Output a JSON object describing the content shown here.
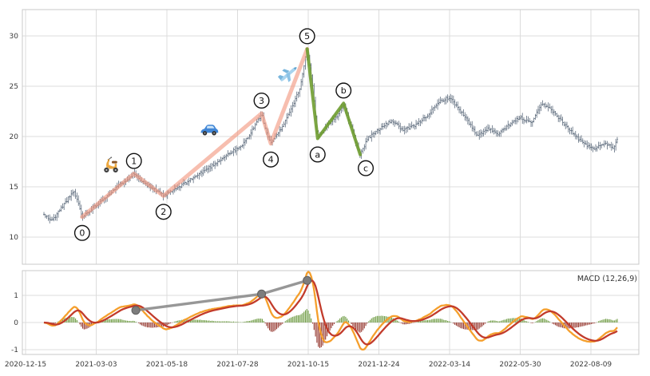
{
  "figure": {
    "background": "#ffffff"
  },
  "chart_data": [
    {
      "type": "candlestick",
      "panel": "price",
      "title": "",
      "xlabel": "",
      "ylabel": "",
      "bar_color": "#3d4e63",
      "grid": true,
      "yticks": [
        10,
        15,
        20,
        25,
        30
      ],
      "ylim": [
        7.3,
        32.6
      ],
      "x_tick_labels": [
        "2020-12-15",
        "2021-03-03",
        "2021-05-18",
        "2021-07-28",
        "2021-10-15",
        "2021-12-24",
        "2022-03-14",
        "2022-05-30",
        "2022-08-09"
      ],
      "price_path": [
        [
          0.035,
          12.2
        ],
        [
          0.048,
          11.6
        ],
        [
          0.062,
          12.8
        ],
        [
          0.075,
          13.9
        ],
        [
          0.084,
          14.5
        ],
        [
          0.09,
          13.5
        ],
        [
          0.097,
          12.0
        ],
        [
          0.12,
          13.2
        ],
        [
          0.15,
          14.8
        ],
        [
          0.181,
          16.3
        ],
        [
          0.2,
          15.3
        ],
        [
          0.229,
          14.1
        ],
        [
          0.255,
          15.0
        ],
        [
          0.285,
          16.2
        ],
        [
          0.31,
          17.2
        ],
        [
          0.335,
          18.3
        ],
        [
          0.355,
          19.0
        ],
        [
          0.37,
          20.3
        ],
        [
          0.388,
          22.3
        ],
        [
          0.395,
          20.6
        ],
        [
          0.403,
          19.3
        ],
        [
          0.42,
          20.8
        ],
        [
          0.438,
          23.0
        ],
        [
          0.45,
          24.8
        ],
        [
          0.462,
          28.7
        ],
        [
          0.47,
          25.5
        ],
        [
          0.479,
          19.8
        ],
        [
          0.495,
          21.2
        ],
        [
          0.51,
          22.0
        ],
        [
          0.521,
          23.3
        ],
        [
          0.533,
          21.0
        ],
        [
          0.548,
          18.2
        ],
        [
          0.56,
          19.8
        ],
        [
          0.58,
          20.8
        ],
        [
          0.6,
          21.6
        ],
        [
          0.618,
          20.6
        ],
        [
          0.64,
          21.2
        ],
        [
          0.66,
          22.3
        ],
        [
          0.678,
          23.5
        ],
        [
          0.692,
          23.9
        ],
        [
          0.705,
          23.0
        ],
        [
          0.722,
          21.6
        ],
        [
          0.738,
          20.0
        ],
        [
          0.755,
          20.8
        ],
        [
          0.772,
          20.2
        ],
        [
          0.79,
          21.2
        ],
        [
          0.808,
          21.9
        ],
        [
          0.825,
          21.3
        ],
        [
          0.843,
          23.2
        ],
        [
          0.858,
          22.7
        ],
        [
          0.875,
          21.5
        ],
        [
          0.893,
          20.3
        ],
        [
          0.912,
          19.2
        ],
        [
          0.93,
          18.8
        ],
        [
          0.945,
          19.4
        ],
        [
          0.958,
          18.9
        ],
        [
          0.965,
          19.7
        ]
      ],
      "elliott_waves": {
        "impulse_color": "#f2967e",
        "correction_color": "#6f9d30",
        "points": [
          {
            "label": "0",
            "t": 0.097,
            "price": 12.0,
            "pos": "below"
          },
          {
            "label": "1",
            "t": 0.181,
            "price": 16.3,
            "pos": "above"
          },
          {
            "label": "2",
            "t": 0.229,
            "price": 14.1,
            "pos": "below"
          },
          {
            "label": "3",
            "t": 0.388,
            "price": 22.3,
            "pos": "above"
          },
          {
            "label": "4",
            "t": 0.403,
            "price": 19.3,
            "pos": "below"
          },
          {
            "label": "5",
            "t": 0.462,
            "price": 28.7,
            "pos": "above"
          },
          {
            "label": "a",
            "t": 0.479,
            "price": 19.8,
            "pos": "below"
          },
          {
            "label": "b",
            "t": 0.521,
            "price": 23.3,
            "pos": "above"
          },
          {
            "label": "c",
            "t": 0.548,
            "price": 18.2,
            "pos": "belowright"
          }
        ]
      },
      "icons": [
        {
          "name": "scooter-icon",
          "t": 0.143,
          "price": 17.2
        },
        {
          "name": "car-icon",
          "t": 0.303,
          "price": 20.7
        },
        {
          "name": "airplane-icon",
          "t": 0.432,
          "price": 26.2
        }
      ]
    },
    {
      "type": "macd",
      "panel": "indicator",
      "label": "MACD (12,26,9)",
      "params": {
        "fast": 12,
        "slow": 26,
        "signal": 9
      },
      "yticks": [
        -1,
        0,
        1
      ],
      "ylim": [
        -1.2,
        1.9
      ],
      "macd_color": "#f59f2c",
      "signal_color": "#c23b2b",
      "hist_positive_color": "#67973a",
      "hist_negative_color": "#8e2a21",
      "divergence_line": {
        "color": "#8c8c8c",
        "marker_color": "#7d7d7d",
        "points": [
          [
            0.184,
            0.45
          ],
          [
            0.388,
            1.05
          ],
          [
            0.462,
            1.55
          ]
        ]
      }
    }
  ]
}
